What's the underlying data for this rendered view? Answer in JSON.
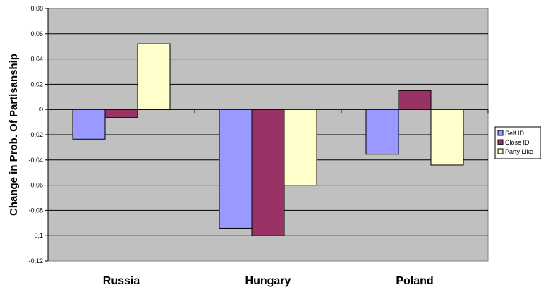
{
  "chart_data": {
    "type": "bar",
    "categories": [
      "Russia",
      "Hungary",
      "Poland"
    ],
    "series": [
      {
        "name": "Self ID",
        "values": [
          -0.0235,
          -0.094,
          -0.0355
        ],
        "color": "#9999FF"
      },
      {
        "name": "Close ID",
        "values": [
          -0.0065,
          -0.1,
          0.015
        ],
        "color": "#993366"
      },
      {
        "name": "Party Like",
        "values": [
          0.052,
          -0.06,
          -0.044
        ],
        "color": "#FFFFCC"
      }
    ],
    "title": "",
    "xlabel": "",
    "ylabel": "Change in Prob. Of Partisanship",
    "ylim": [
      -0.12,
      0.08
    ],
    "yticks": [
      "0,08",
      "0,06",
      "0,04",
      "0,02",
      "0",
      "-0,02",
      "-0,04",
      "-0,06",
      "-0,08",
      "-0,1",
      "-0,12"
    ],
    "grid": true,
    "legend": "right",
    "plot_background": "#C0C0C0"
  }
}
